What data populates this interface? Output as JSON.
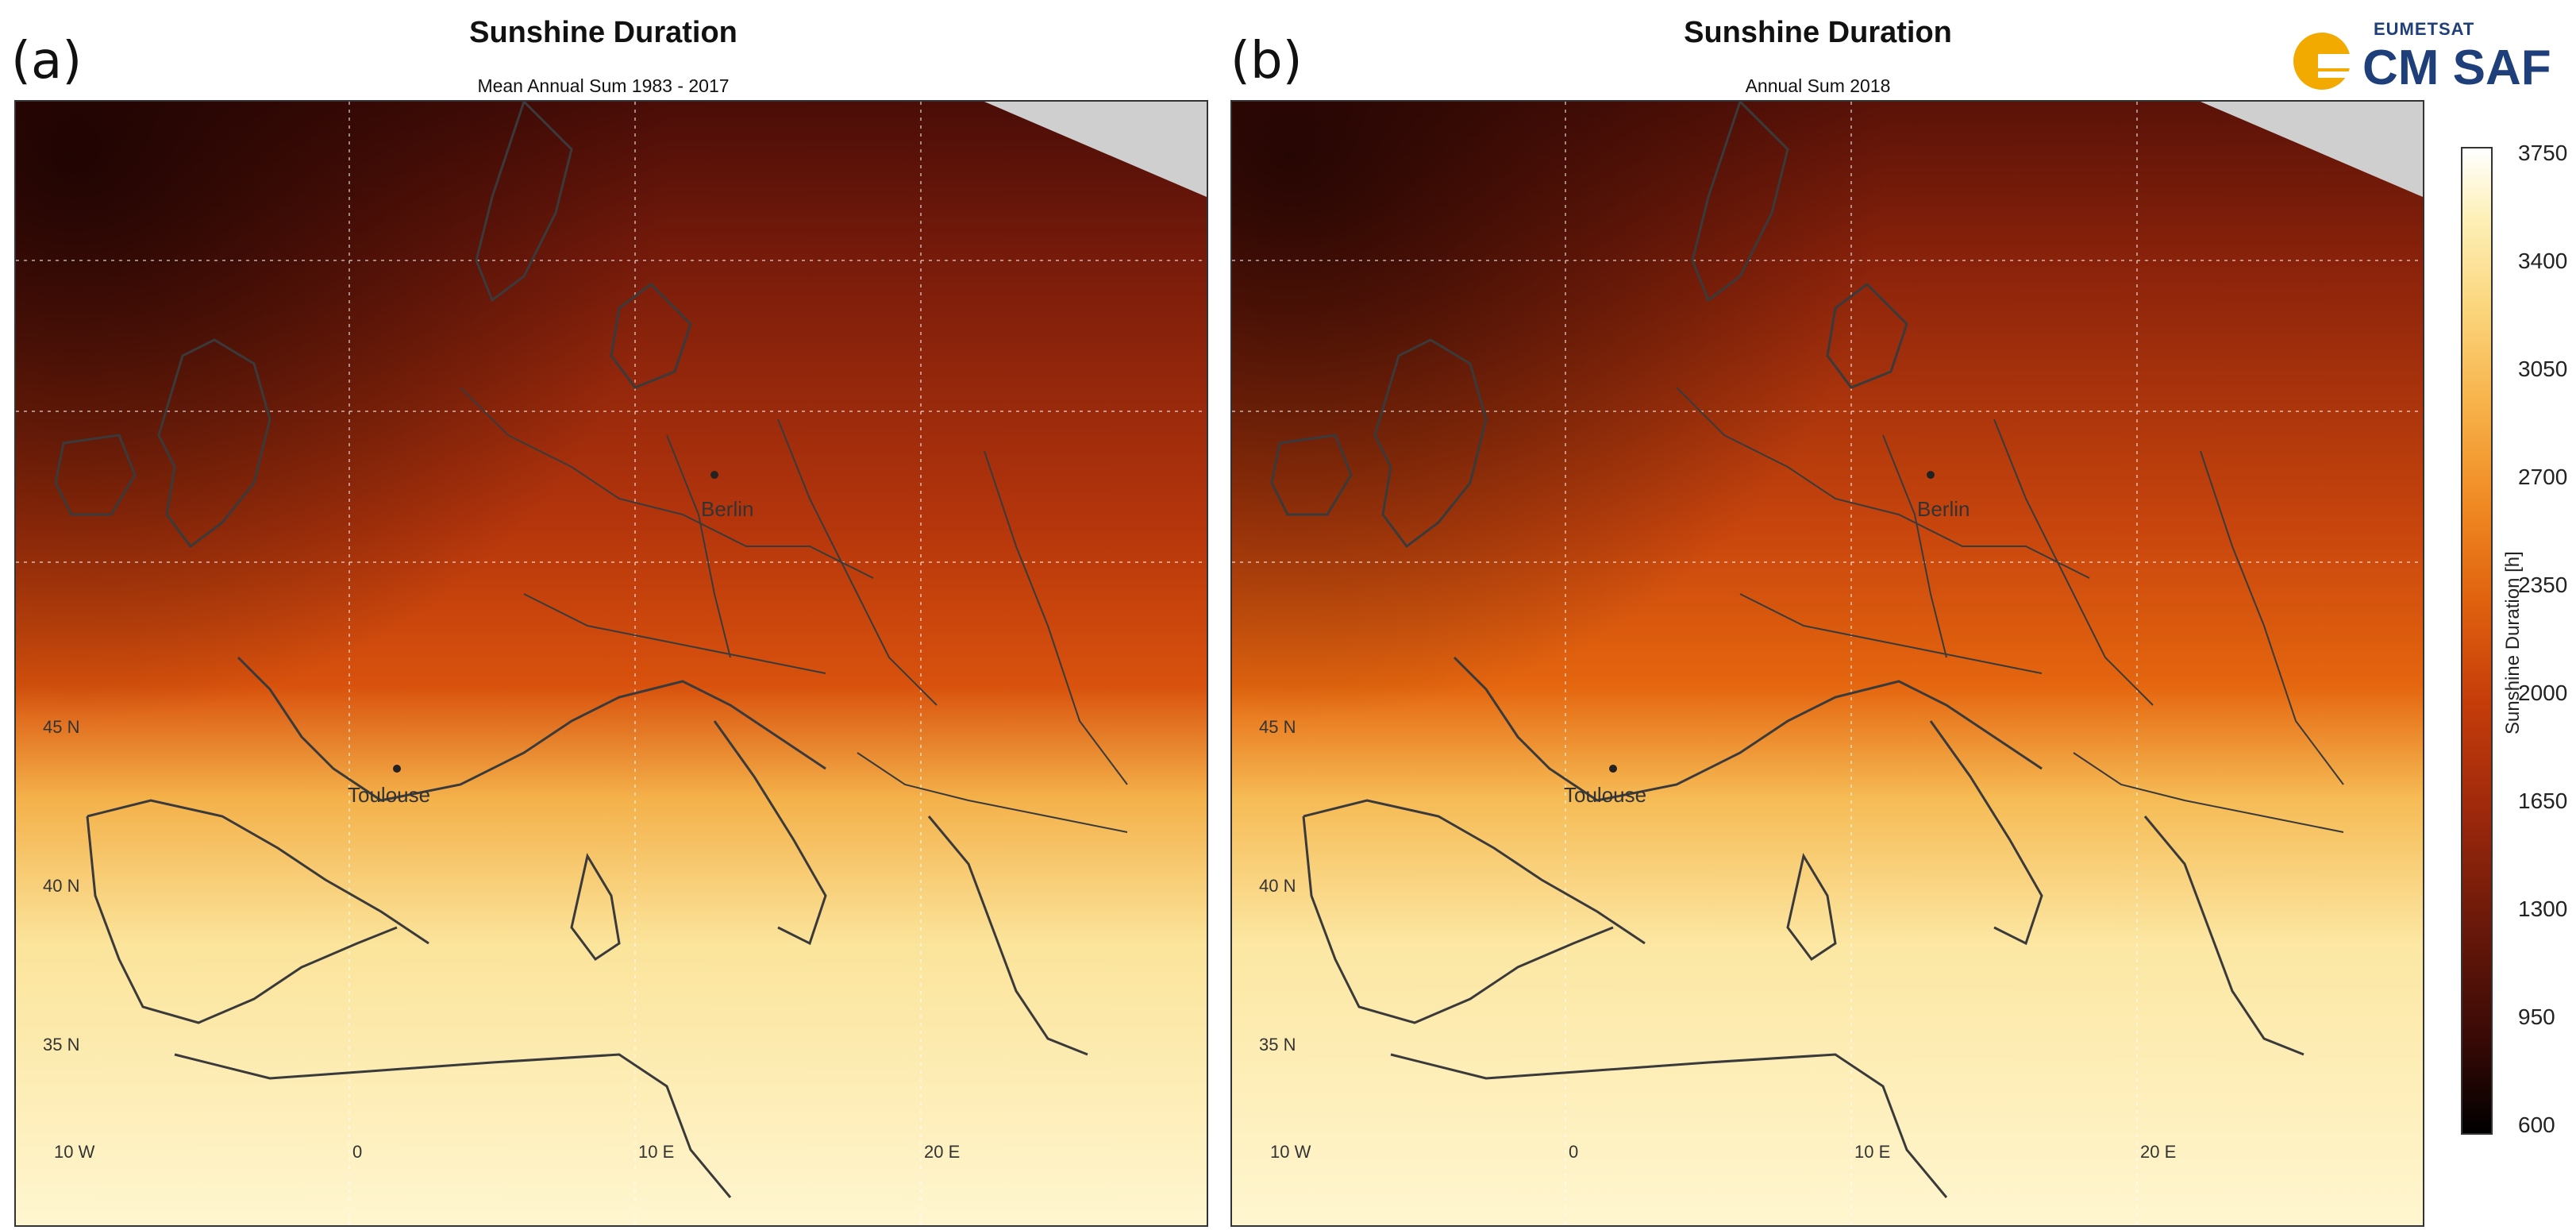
{
  "panels": [
    {
      "letter": "(a)",
      "title": "Sunshine Duration",
      "subtitle": "Mean Annual Sum 1983 - 2017",
      "lat_labels": [
        "45 N",
        "40 N",
        "35 N"
      ],
      "lon_labels": [
        "10 W",
        "0",
        "10 E",
        "20 E"
      ],
      "cities": [
        "Berlin",
        "Toulouse"
      ]
    },
    {
      "letter": "(b)",
      "title": "Sunshine Duration",
      "subtitle": "Annual Sum 2018",
      "lat_labels": [
        "45 N",
        "40 N",
        "35 N"
      ],
      "lon_labels": [
        "10 W",
        "0",
        "10 E",
        "20 E"
      ],
      "cities": [
        "Berlin",
        "Toulouse"
      ]
    }
  ],
  "logo": {
    "top_text": "EUMETSAT",
    "main_text": "CM SAF",
    "icon": "sun-logo-icon",
    "color": "#1f3f7a",
    "accent": "#f2a900"
  },
  "colorbar": {
    "label": "Sunshine Duration [h]",
    "ticks": [
      "3750",
      "3400",
      "3050",
      "2700",
      "2350",
      "2000",
      "1650",
      "1300",
      "950",
      "600"
    ],
    "range": [
      600,
      3750
    ],
    "colors": [
      "#000000",
      "#3b0a06",
      "#6e1a0a",
      "#a32b0c",
      "#c63d0a",
      "#e0620f",
      "#f08a23",
      "#f7b24a",
      "#fbd67e",
      "#fdf0b8",
      "#ffffff"
    ]
  }
}
